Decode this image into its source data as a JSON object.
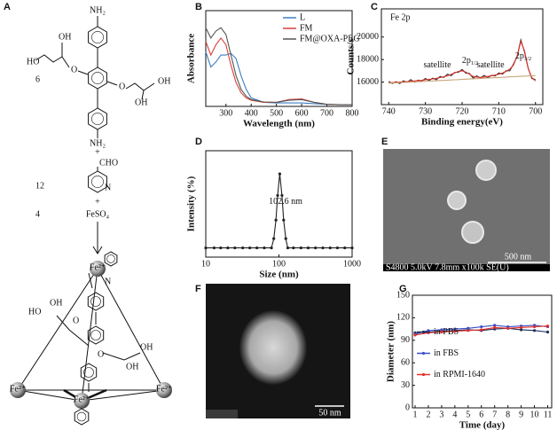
{
  "scheme": {
    "label": "A",
    "counts": [
      "6",
      "12",
      "4"
    ],
    "plus": [
      "+",
      "+"
    ],
    "reagent": "FeSO₄",
    "ligand_atoms": [
      "NH₂",
      "OH",
      "HO",
      "O",
      "O",
      "OH",
      "OH",
      "NH₂"
    ],
    "aldehyde_atoms": [
      "CHO",
      "N"
    ],
    "cage_atoms": [
      "Fe²⁺",
      "Fe²⁺",
      "Fe²⁺",
      "Fe²⁺",
      "OH",
      "HO",
      "O",
      "O",
      "OH",
      "OH",
      "N"
    ]
  },
  "chart_data": [
    {
      "type": "line",
      "panel": "B",
      "xlabel": "Wavelength (nm)",
      "ylabel": "Absorbance",
      "x": [
        220,
        240,
        260,
        280,
        300,
        320,
        340,
        360,
        380,
        400,
        450,
        500,
        550,
        600,
        650,
        700,
        750,
        800
      ],
      "xlim": [
        220,
        800
      ],
      "xticks": [
        300,
        400,
        500,
        600,
        700,
        800
      ],
      "ylim": [
        0,
        2.8
      ],
      "legend": "upper right",
      "series": [
        {
          "name": "L",
          "color": "#3a7fc1",
          "values": [
            1.6,
            1.15,
            1.3,
            1.5,
            1.5,
            1.55,
            1.4,
            0.9,
            0.5,
            0.25,
            0.12,
            0.1,
            0.1,
            0.1,
            0.08,
            0.06,
            0.05,
            0.05
          ]
        },
        {
          "name": "FM",
          "color": "#d9403a",
          "values": [
            1.9,
            1.5,
            1.8,
            2.0,
            1.8,
            1.2,
            0.7,
            0.4,
            0.25,
            0.18,
            0.12,
            0.12,
            0.2,
            0.22,
            0.12,
            0.06,
            0.05,
            0.05
          ]
        },
        {
          "name": "FM@OXA-PEG",
          "color": "#555555",
          "values": [
            2.3,
            2.0,
            2.2,
            2.3,
            2.1,
            1.5,
            0.9,
            0.5,
            0.3,
            0.2,
            0.13,
            0.12,
            0.18,
            0.2,
            0.12,
            0.06,
            0.05,
            0.05
          ]
        }
      ]
    },
    {
      "type": "line",
      "panel": "C",
      "title": "Fe 2p",
      "xlabel": "Binding energy(eV)",
      "ylabel": "Counts/s",
      "x": [
        740,
        739,
        738,
        737,
        736,
        735,
        734,
        733,
        732,
        731,
        730,
        729,
        728,
        727,
        726,
        725,
        724,
        723,
        722,
        721,
        720,
        719,
        718,
        717,
        716,
        715,
        714,
        713,
        712,
        711,
        710,
        709,
        708,
        707,
        706,
        705,
        704,
        703,
        702,
        701,
        700
      ],
      "xlim": [
        742,
        698
      ],
      "xticks": [
        740,
        730,
        720,
        710,
        700
      ],
      "ylim": [
        14000,
        22500
      ],
      "yticks": [
        16000,
        18000,
        20000
      ],
      "series": [
        {
          "color": "#333333",
          "values": [
            16070,
            15870,
            16040,
            15860,
            16120,
            15980,
            16220,
            15990,
            16170,
            16080,
            16320,
            16150,
            16350,
            16200,
            16500,
            16410,
            16710,
            16570,
            16860,
            16870,
            17120,
            16810,
            16760,
            16360,
            16550,
            16360,
            16600,
            16390,
            16600,
            16540,
            16820,
            16710,
            17010,
            17010,
            17600,
            18240,
            19750,
            18690,
            17240,
            16320,
            16220
          ]
        },
        {
          "color": "#e0302a",
          "values": [
            15950,
            15960,
            15980,
            16000,
            16020,
            16040,
            16070,
            16100,
            16130,
            16160,
            16200,
            16240,
            16290,
            16340,
            16400,
            16470,
            16560,
            16680,
            16820,
            16950,
            17000,
            16900,
            16700,
            16500,
            16450,
            16420,
            16450,
            16500,
            16560,
            16620,
            16700,
            16800,
            16950,
            17150,
            17500,
            18300,
            19600,
            18800,
            17200,
            16400,
            16100
          ]
        },
        {
          "color": "#c8a57a",
          "values": [
            15900,
            15917,
            15934,
            15951,
            15968,
            15985,
            16002,
            16019,
            16036,
            16053,
            16070,
            16087,
            16104,
            16121,
            16138,
            16155,
            16172,
            16189,
            16206,
            16223,
            16240,
            16257,
            16274,
            16291,
            16308,
            16325,
            16342,
            16359,
            16376,
            16393,
            16410,
            16427,
            16444,
            16461,
            16478,
            16495,
            16512,
            16529,
            16546,
            16563,
            16580
          ]
        }
      ],
      "annotations": [
        {
          "text": "satellite"
        },
        {
          "text": "2p",
          "sub": "1/2"
        },
        {
          "text": "satellite"
        },
        {
          "text": "2p",
          "sub": "3/2"
        }
      ]
    },
    {
      "type": "line",
      "panel": "D",
      "xlabel": "Size (nm)",
      "ylabel": "Intensity (%)",
      "log_x": true,
      "markers": true,
      "color": "#222222",
      "x": [
        10,
        13,
        16,
        20,
        25,
        32,
        40,
        50,
        63,
        79,
        85,
        91,
        96,
        102.6,
        110,
        116,
        124,
        132,
        158,
        200,
        251,
        316,
        398,
        501,
        631,
        794,
        1000
      ],
      "values": [
        0,
        0,
        0,
        0,
        0,
        0,
        0,
        0,
        0,
        0,
        6,
        18,
        34,
        48,
        34,
        18,
        6,
        0,
        0,
        0,
        0,
        0,
        0,
        0,
        0,
        0,
        0
      ],
      "xlim": [
        10,
        1000
      ],
      "xticks": [
        10,
        100,
        1000
      ],
      "ylim": [
        -6,
        63
      ],
      "annotations": [
        {
          "text": "102.6 nm"
        }
      ]
    },
    {
      "type": "line",
      "panel": "G",
      "xlabel": "Time (day)",
      "ylabel": "Diameter (nm)",
      "markers": true,
      "legend": "center left",
      "x": [
        1,
        2,
        3,
        4,
        5,
        6,
        7,
        8,
        9,
        10,
        11
      ],
      "xlim": [
        0.8,
        11.3
      ],
      "xticks": [
        1,
        2,
        3,
        4,
        5,
        6,
        7,
        8,
        9,
        10,
        11
      ],
      "ylim": [
        0,
        150
      ],
      "yticks": [
        0,
        30,
        60,
        90,
        120,
        150
      ],
      "series": [
        {
          "name": "in PBS",
          "color": "#1f2a5a",
          "values": [
            100,
            101,
            102,
            103,
            104,
            103,
            105,
            106,
            104,
            103,
            101
          ]
        },
        {
          "name": "in FBS",
          "color": "#3b4fc4",
          "values": [
            98,
            103,
            104,
            105,
            106,
            108,
            110,
            108,
            109,
            110,
            108
          ]
        },
        {
          "name": "in RPMI-1640",
          "color": "#e0302a",
          "values": [
            97,
            100,
            101,
            102,
            103,
            104,
            107,
            106,
            107,
            108,
            109
          ]
        }
      ]
    }
  ],
  "images": [
    {
      "label": "E",
      "scale_bar": "500 nm",
      "caption": "S4800 5.0kV 7.8mm x100k SE(U)"
    },
    {
      "label": "F",
      "scale_bar": "50 nm"
    }
  ]
}
